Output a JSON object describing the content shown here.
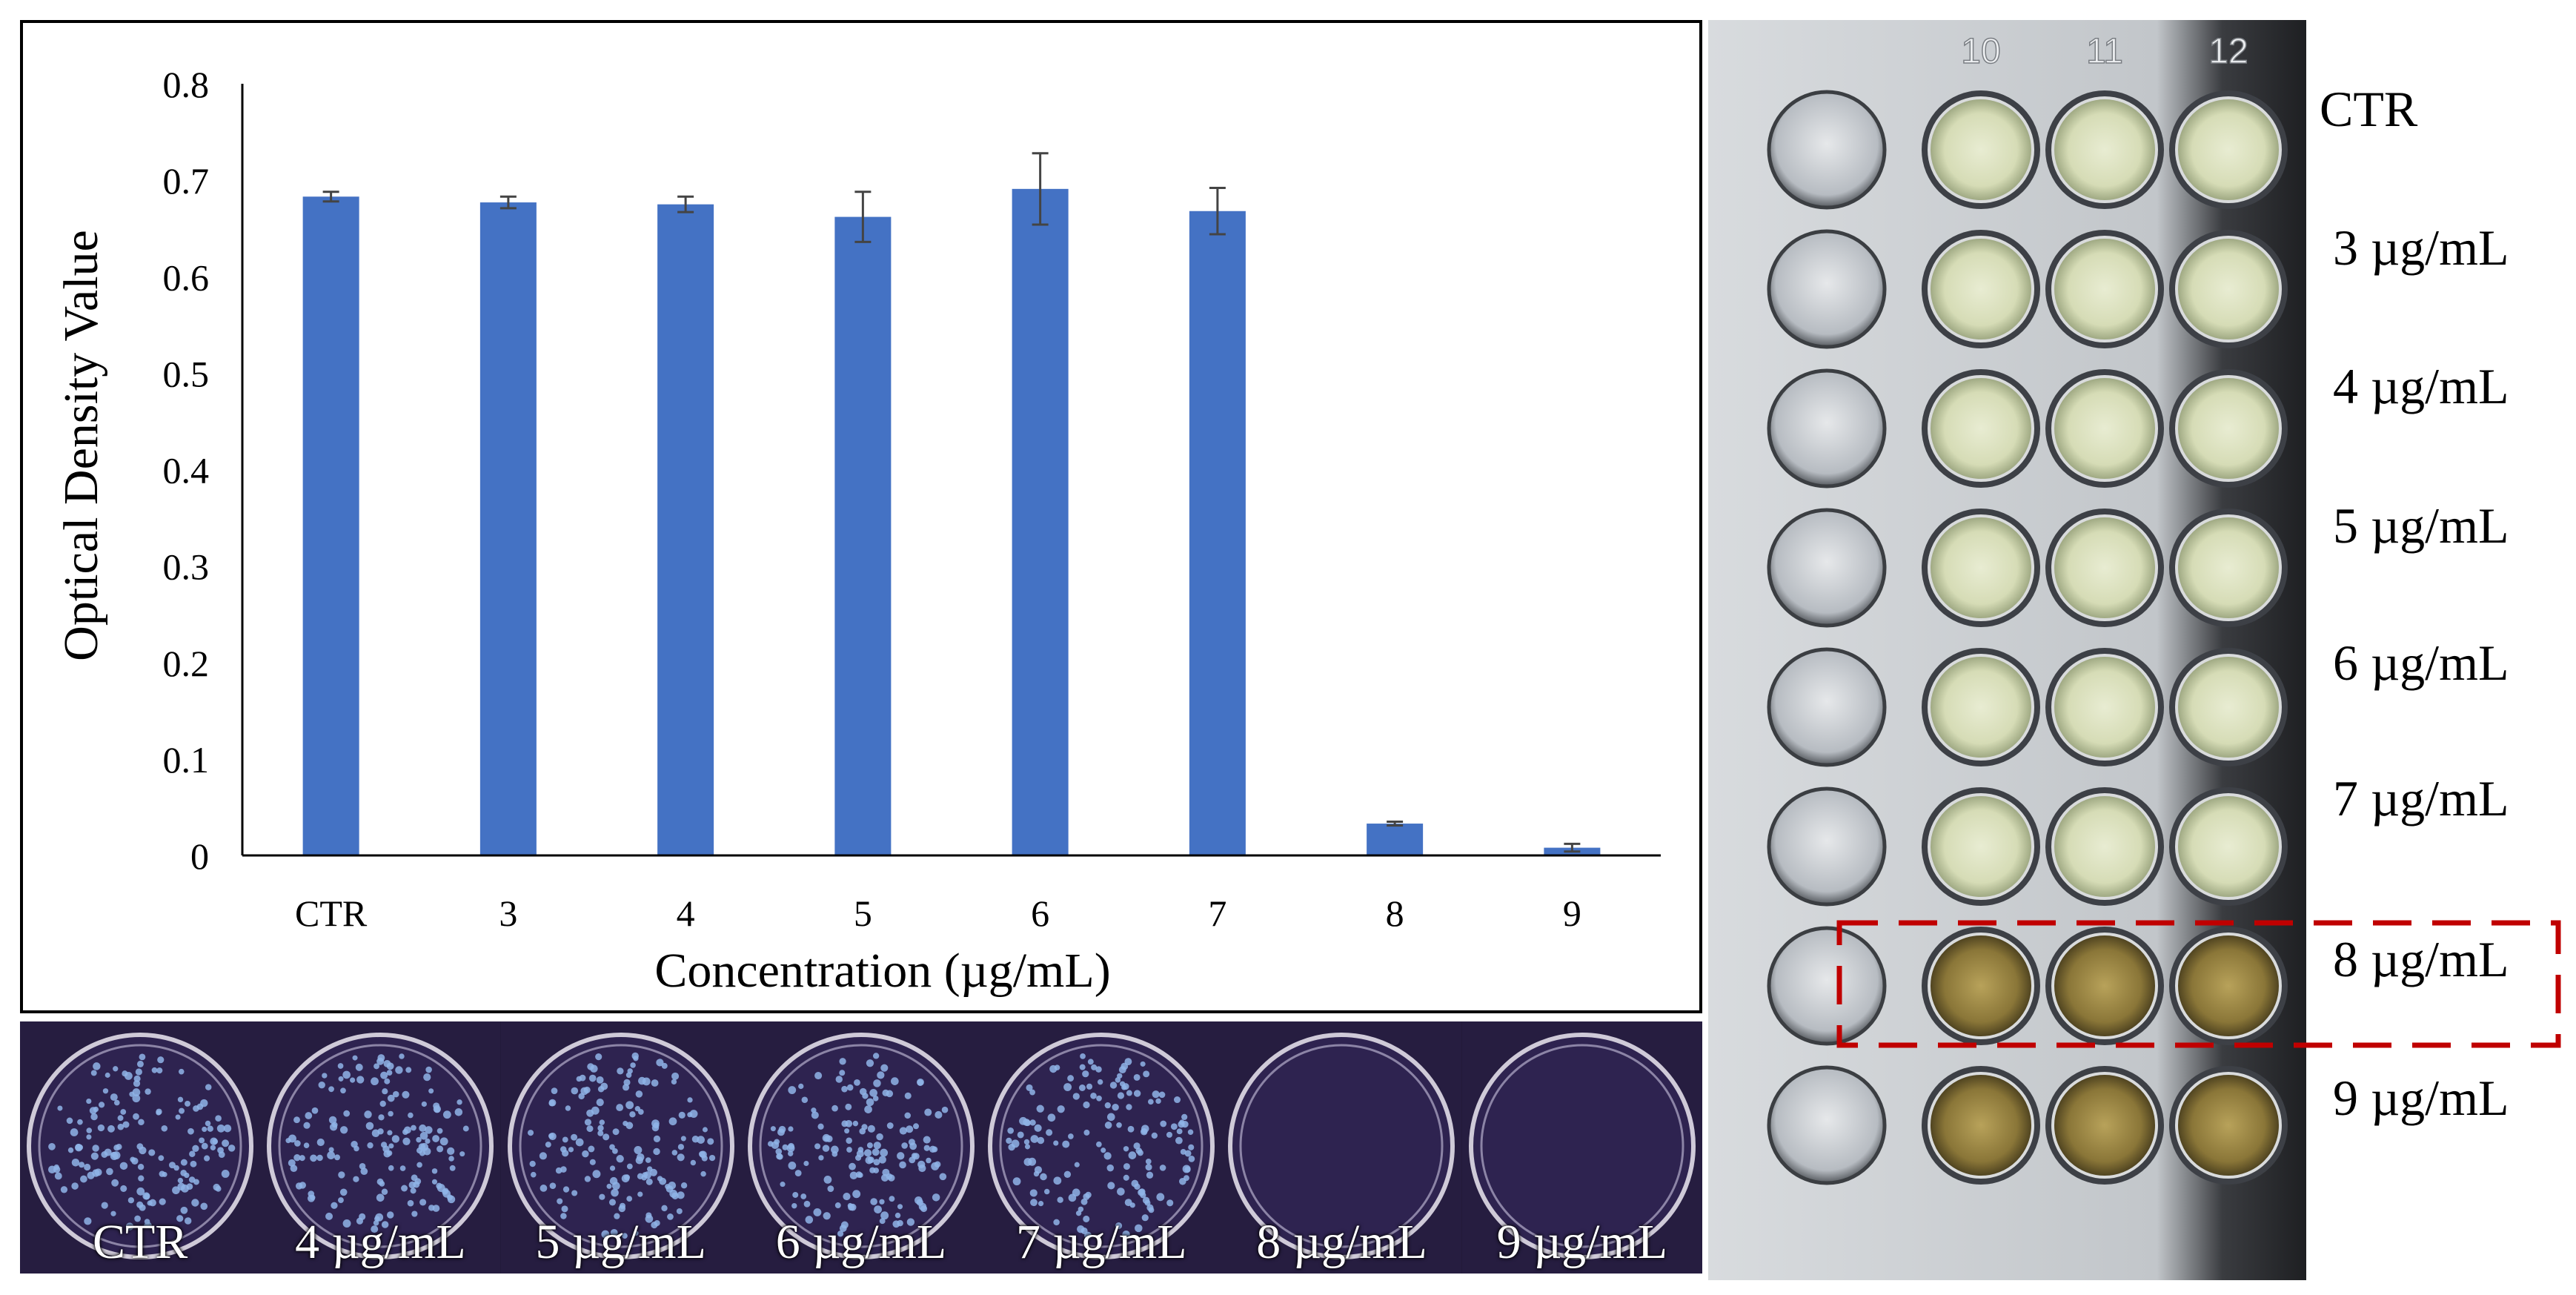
{
  "chart_data": {
    "type": "bar",
    "categories": [
      "CTR",
      "3",
      "4",
      "5",
      "6",
      "7",
      "8",
      "9"
    ],
    "series": [
      {
        "values": [
          0.683,
          0.677,
          0.675,
          0.662,
          0.691,
          0.668,
          0.033,
          0.008
        ],
        "error": [
          0.005,
          0.006,
          0.008,
          0.026,
          0.037,
          0.024,
          0.002,
          0.004
        ]
      }
    ],
    "xlabel": "Concentration (µg/mL)",
    "ylabel": "Optical Density Value",
    "ylim": [
      0,
      0.8
    ],
    "yticks": [
      "0",
      "0.1",
      "0.2",
      "0.3",
      "0.4",
      "0.5",
      "0.6",
      "0.7",
      "0.8"
    ],
    "grid": false,
    "bar_color": "#4472c4"
  },
  "plates": [
    "CTR",
    "4 µg/mL",
    "5 µg/mL",
    "6 µg/mL",
    "7 µg/mL",
    "8 µg/mL",
    "9 µg/mL"
  ],
  "colony_presence": [
    true,
    true,
    true,
    true,
    true,
    false,
    false
  ],
  "well_plate": {
    "column_labels": [
      "10",
      "11",
      "12"
    ],
    "row_labels": [
      "CTR",
      "3 µg/mL",
      "4 µg/mL",
      "5 µg/mL",
      "6 µg/mL",
      "7 µg/mL",
      "8 µg/mL",
      "9 µg/mL"
    ],
    "highlighted_row": "8 µg/mL",
    "highlight_color": "#c00000"
  }
}
